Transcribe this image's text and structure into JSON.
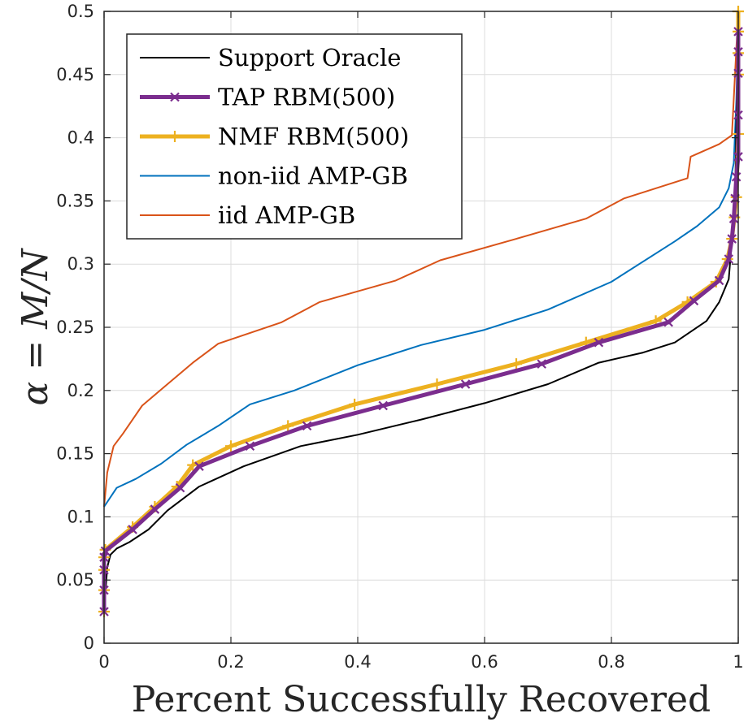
{
  "chart_data": {
    "type": "line",
    "xlabel": "Percent Successfully Recovered",
    "ylabel": "α = M/N",
    "xlim": [
      0,
      1
    ],
    "ylim": [
      0,
      0.5
    ],
    "xticks": [
      "0",
      "0.2",
      "0.4",
      "0.6",
      "0.8",
      "1"
    ],
    "yticks": [
      "0",
      "0.05",
      "0.1",
      "0.15",
      "0.2",
      "0.25",
      "0.3",
      "0.35",
      "0.4",
      "0.45",
      "0.5"
    ],
    "grid": true,
    "legend_position": "top-left",
    "series": [
      {
        "name": "Support Oracle",
        "color": "#000000",
        "marker": "none",
        "x": [
          0.0,
          0.005,
          0.01,
          0.02,
          0.04,
          0.07,
          0.1,
          0.15,
          0.22,
          0.31,
          0.4,
          0.5,
          0.6,
          0.7,
          0.78,
          0.85,
          0.9,
          0.95,
          0.97,
          0.985,
          0.995,
          1.0
        ],
        "y": [
          0.025,
          0.06,
          0.07,
          0.075,
          0.08,
          0.09,
          0.105,
          0.124,
          0.14,
          0.156,
          0.165,
          0.177,
          0.19,
          0.205,
          0.222,
          0.23,
          0.238,
          0.255,
          0.27,
          0.288,
          0.35,
          0.5
        ]
      },
      {
        "name": "TAP RBM(500)",
        "color": "#7b2d8e",
        "marker": "x",
        "x": [
          0.0,
          0.0,
          0.0,
          0.0,
          0.002,
          0.045,
          0.08,
          0.12,
          0.15,
          0.23,
          0.32,
          0.44,
          0.57,
          0.69,
          0.78,
          0.89,
          0.93,
          0.97,
          0.985,
          0.99,
          0.993,
          0.995,
          0.997,
          1.0,
          1.0,
          1.0,
          1.0,
          1.0
        ],
        "y": [
          0.025,
          0.042,
          0.058,
          0.068,
          0.073,
          0.09,
          0.106,
          0.123,
          0.14,
          0.156,
          0.172,
          0.188,
          0.205,
          0.221,
          0.238,
          0.254,
          0.271,
          0.287,
          0.304,
          0.32,
          0.336,
          0.352,
          0.369,
          0.385,
          0.418,
          0.451,
          0.468,
          0.484
        ]
      },
      {
        "name": "NMF RBM(500)",
        "color": "#edb120",
        "marker": "+",
        "x": [
          0.0,
          0.0,
          0.0,
          0.0,
          0.002,
          0.045,
          0.08,
          0.115,
          0.14,
          0.2,
          0.29,
          0.395,
          0.525,
          0.65,
          0.76,
          0.87,
          0.92,
          0.965,
          0.983,
          0.99,
          0.994,
          0.997,
          1.0,
          1.0,
          1.0,
          1.0,
          1.0
        ],
        "y": [
          0.025,
          0.042,
          0.058,
          0.068,
          0.074,
          0.092,
          0.108,
          0.124,
          0.141,
          0.156,
          0.172,
          0.189,
          0.205,
          0.221,
          0.238,
          0.255,
          0.27,
          0.286,
          0.304,
          0.32,
          0.337,
          0.353,
          0.403,
          0.45,
          0.467,
          0.484,
          0.5
        ]
      },
      {
        "name": "non-iid AMP-GB",
        "color": "#0072bd",
        "marker": "none",
        "x": [
          0.0,
          0.02,
          0.05,
          0.09,
          0.13,
          0.18,
          0.23,
          0.3,
          0.4,
          0.5,
          0.6,
          0.7,
          0.8,
          0.9,
          0.935,
          0.97,
          0.985,
          0.993,
          0.997,
          1.0
        ],
        "y": [
          0.108,
          0.123,
          0.13,
          0.142,
          0.157,
          0.172,
          0.189,
          0.2,
          0.22,
          0.236,
          0.248,
          0.264,
          0.286,
          0.318,
          0.33,
          0.345,
          0.36,
          0.38,
          0.43,
          0.5
        ]
      },
      {
        "name": "iid AMP-GB",
        "color": "#d95319",
        "marker": "none",
        "x": [
          0.0,
          0.005,
          0.015,
          0.03,
          0.06,
          0.1,
          0.14,
          0.18,
          0.28,
          0.34,
          0.46,
          0.53,
          0.65,
          0.76,
          0.82,
          0.92,
          0.925,
          0.97,
          0.99,
          1.0
        ],
        "y": [
          0.108,
          0.135,
          0.156,
          0.166,
          0.188,
          0.205,
          0.222,
          0.237,
          0.254,
          0.27,
          0.287,
          0.303,
          0.32,
          0.336,
          0.352,
          0.368,
          0.385,
          0.395,
          0.402,
          0.5
        ]
      }
    ]
  }
}
